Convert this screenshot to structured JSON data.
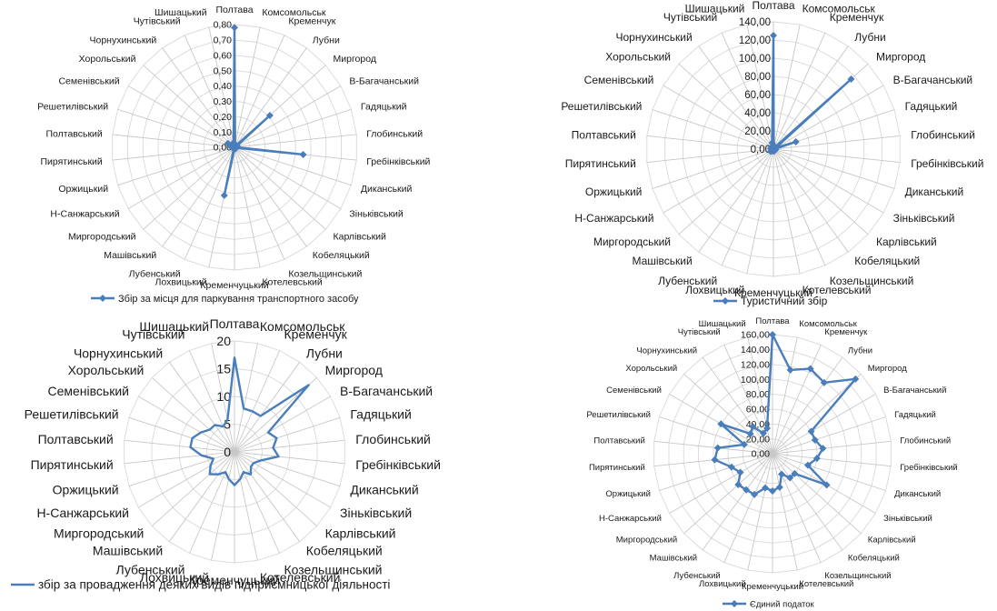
{
  "colors": {
    "grid": "#d9d9d9",
    "axis": "#c8c8c8",
    "series": "#4a7ebb",
    "text": "#1a1a1a"
  },
  "chart_data": [
    {
      "type": "radar",
      "legend": "Збір за місця для паркування транспортного засобу",
      "legend_position": "bottom",
      "marker": "diamond",
      "rmax": 0.8,
      "ticks": [
        "0,00",
        "0,10",
        "0,20",
        "0,30",
        "0,40",
        "0,50",
        "0,60",
        "0,70",
        "0,80"
      ],
      "categories": [
        "Полтава",
        "Комсомольськ",
        "Кременчук",
        "Лубни",
        "Миргород",
        "В-Багачанський",
        "Гадяцький",
        "Глобинський",
        "Гребінківський",
        "Диканський",
        "Зіньківський",
        "Карлівський",
        "Кобеляцький",
        "Козельщинський",
        "Котелевський",
        "Кременчуцький",
        "Лохвицький",
        "Лубенський",
        "Машівський",
        "Миргородський",
        "Н-Санжарський",
        "Оржицький",
        "Пирятинський",
        "Полтавський",
        "Решетилівський",
        "Семенівський",
        "Хорольський",
        "Чорнухинський",
        "Чутівський",
        "Шишацький"
      ],
      "values": [
        0.78,
        0.02,
        0.01,
        0.01,
        0.31,
        0.02,
        0.01,
        0.01,
        0.45,
        0.01,
        0.01,
        0.01,
        0.01,
        0.01,
        0.01,
        0.01,
        0.32,
        0.01,
        0.01,
        0.01,
        0.01,
        0.01,
        0.01,
        0.01,
        0.03,
        0.05,
        0.01,
        0.01,
        0.02,
        0.03
      ]
    },
    {
      "type": "radar",
      "legend": "Туристичний  збір",
      "legend_position": "bottom",
      "marker": "diamond",
      "rmax": 140,
      "ticks": [
        "0,00",
        "20,00",
        "40,00",
        "60,00",
        "80,00",
        "100,00",
        "120,00",
        "140,00"
      ],
      "categories": [
        "Полтава",
        "Комсомольськ",
        "Кременчук",
        "Лубни",
        "Миргород",
        "В-Багачанський",
        "Гадяцький",
        "Глобинський",
        "Гребінківський",
        "Диканський",
        "Зіньківський",
        "Карлівський",
        "Кобеляцький",
        "Козельщинський",
        "Котелевський",
        "Кременчуцький",
        "Лохвицький",
        "Лубенський",
        "Машівський",
        "Миргородський",
        "Н-Санжарський",
        "Оржицький",
        "Пирятинський",
        "Полтавський",
        "Решетилівський",
        "Семенівський",
        "Хорольський",
        "Чорнухинський",
        "Чутівський",
        "Шишацький"
      ],
      "values": [
        125,
        2,
        2,
        3,
        115,
        3,
        26,
        2,
        2,
        2,
        2,
        2,
        2,
        2,
        2,
        2,
        2,
        2,
        2,
        4,
        2,
        2,
        2,
        2,
        3,
        3,
        2,
        2,
        2,
        7
      ]
    },
    {
      "type": "radar",
      "legend": "збір за провадження деяких видів підприємницької діяльності",
      "legend_position": "bottom",
      "marker": "none",
      "rmax": 20,
      "ticks": [
        "0",
        "5",
        "10",
        "15",
        "20"
      ],
      "categories": [
        "Полтава",
        "Комсомольськ",
        "Кременчук",
        "Лубни",
        "Миргород",
        "В-Багачанський",
        "Гадяцький",
        "Глобинський",
        "Гребінківський",
        "Диканський",
        "Зіньківський",
        "Карлівський",
        "Кобеляцький",
        "Козельщинський",
        "Котелевський",
        "Кременчуцький",
        "Лохвицький",
        "Лубенський",
        "Машівський",
        "Миргородський",
        "Н-Санжарський",
        "Оржицький",
        "Пирятинський",
        "Полтавський",
        "Решетилівський",
        "Семенівський",
        "Хорольський",
        "Чорнухинський",
        "Чутівський",
        "Шишацький"
      ],
      "values": [
        17,
        8,
        8,
        8,
        18,
        7,
        8,
        7,
        8,
        5,
        4,
        4,
        5,
        4,
        5,
        6,
        5,
        4,
        5,
        6,
        5,
        4,
        6,
        8,
        8,
        7,
        6,
        6,
        5,
        6
      ]
    },
    {
      "type": "radar",
      "legend": "Єдиний податок",
      "legend_position": "bottom",
      "marker": "diamond",
      "rmax": 160,
      "ticks": [
        "0,00",
        "20,00",
        "40,00",
        "60,00",
        "80,00",
        "100,00",
        "120,00",
        "140,00",
        "160,00"
      ],
      "categories": [
        "Полтава",
        "Комсомольськ",
        "Кременчук",
        "Лубни",
        "Миргород",
        "В-Багачанський",
        "Гадяцький",
        "Глобинський",
        "Гребінківський",
        "Диканський",
        "Зіньківський",
        "Карлівський",
        "Кобеляцький",
        "Козельщинський",
        "Котелевський",
        "Кременчуцький",
        "Лохвицький",
        "Лубенський",
        "Машівський",
        "Миргородський",
        "Н-Санжарський",
        "Оржицький",
        "Пирятинський",
        "Полтавський",
        "Решетилівський",
        "Семенівський",
        "Хорольський",
        "Чорнухинський",
        "Чутівський",
        "Шишацький"
      ],
      "values": [
        160,
        115,
        125,
        118,
        150,
        60,
        60,
        68,
        60,
        50,
        84,
        40,
        40,
        30,
        46,
        50,
        47,
        60,
        60,
        62,
        50,
        58,
        78,
        74,
        40,
        80,
        40,
        45,
        30,
        35
      ]
    }
  ]
}
